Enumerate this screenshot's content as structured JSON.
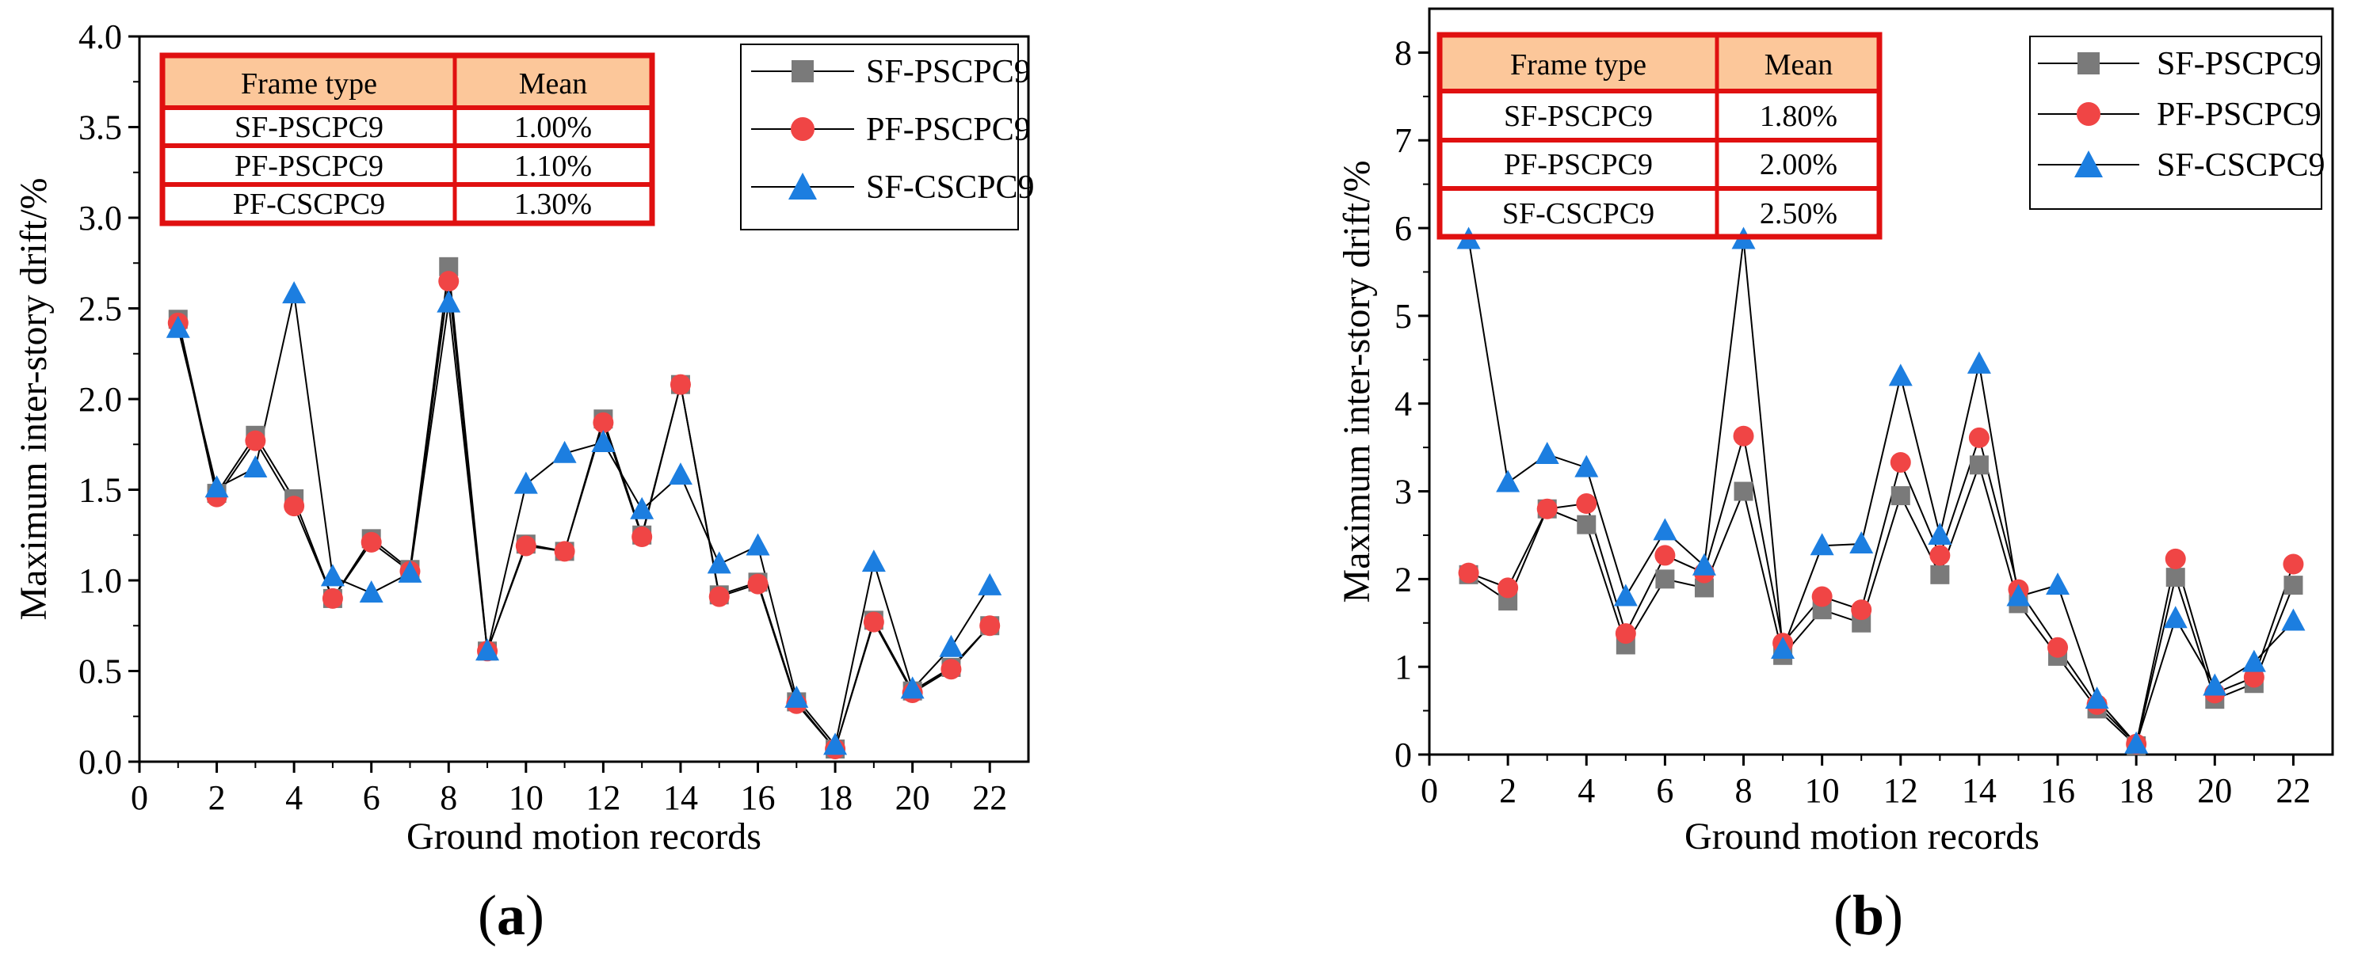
{
  "colors": {
    "sf_pscpc9": "#7a7a7a",
    "pf_pscpc9": "#f04545",
    "sf_cscpc9": "#1c7ee0",
    "table_header_bg": "#fcc79a",
    "table_border": "#e01010"
  },
  "chart_data": [
    {
      "id": "a",
      "type": "line",
      "panel_label": "(a)",
      "xlabel": "Ground motion records",
      "ylabel": "Maximum inter-story drift/%",
      "xlim": [
        0,
        23
      ],
      "ylim": [
        0,
        4.0
      ],
      "xticks": [
        "0",
        "2",
        "4",
        "6",
        "8",
        "10",
        "12",
        "14",
        "16",
        "18",
        "20",
        "22"
      ],
      "yticks": [
        "0.0",
        "0.5",
        "1.0",
        "1.5",
        "2.0",
        "2.5",
        "3.0",
        "3.5",
        "4.0"
      ],
      "x": [
        1,
        2,
        3,
        4,
        5,
        6,
        7,
        8,
        9,
        10,
        11,
        12,
        13,
        14,
        15,
        16,
        17,
        18,
        19,
        20,
        21,
        22
      ],
      "series": [
        {
          "name": "SF-PSCPC9",
          "marker": "square",
          "values": [
            2.44,
            1.48,
            1.8,
            1.45,
            0.9,
            1.23,
            1.06,
            2.73,
            0.61,
            1.2,
            1.16,
            1.89,
            1.25,
            2.08,
            0.92,
            0.99,
            0.33,
            0.07,
            0.78,
            0.39,
            0.52,
            0.75
          ]
        },
        {
          "name": "PF-PSCPC9",
          "marker": "circle",
          "values": [
            2.42,
            1.46,
            1.77,
            1.41,
            0.9,
            1.21,
            1.05,
            2.65,
            0.61,
            1.19,
            1.16,
            1.87,
            1.24,
            2.08,
            0.91,
            0.98,
            0.32,
            0.07,
            0.77,
            0.38,
            0.51,
            0.75
          ]
        },
        {
          "name": "SF-CSCPC9",
          "marker": "triangle",
          "values": [
            2.39,
            1.51,
            1.62,
            2.58,
            1.02,
            0.93,
            1.04,
            2.53,
            0.61,
            1.53,
            1.7,
            1.76,
            1.39,
            1.58,
            1.09,
            1.19,
            0.35,
            0.09,
            1.1,
            0.4,
            0.63,
            0.97
          ]
        }
      ],
      "legend": [
        "SF-PSCPC9",
        "PF-PSCPC9",
        "SF-CSCPC9"
      ],
      "table": {
        "headers": [
          "Frame type",
          "Mean"
        ],
        "rows": [
          [
            "SF-PSCPC9",
            "1.00%"
          ],
          [
            "PF-PSCPC9",
            "1.10%"
          ],
          [
            "PF-CSCPC9",
            "1.30%"
          ]
        ]
      }
    },
    {
      "id": "b",
      "type": "line",
      "panel_label": "(b)",
      "xlabel": "Ground motion records",
      "ylabel": "Maximum inter-story drift/%",
      "xlim": [
        0,
        23
      ],
      "ylim": [
        0,
        8.5
      ],
      "xticks": [
        "0",
        "2",
        "4",
        "6",
        "8",
        "10",
        "12",
        "14",
        "16",
        "18",
        "20",
        "22"
      ],
      "yticks": [
        "0",
        "1",
        "2",
        "3",
        "4",
        "5",
        "6",
        "7",
        "8"
      ],
      "x": [
        1,
        2,
        3,
        4,
        5,
        6,
        7,
        8,
        9,
        10,
        11,
        12,
        13,
        14,
        15,
        16,
        17,
        18,
        19,
        20,
        21,
        22
      ],
      "series": [
        {
          "name": "SF-PSCPC9",
          "marker": "square",
          "values": [
            2.05,
            1.75,
            2.8,
            2.62,
            1.25,
            2.0,
            1.9,
            3.0,
            1.13,
            1.65,
            1.5,
            2.95,
            2.05,
            3.3,
            1.72,
            1.12,
            0.52,
            0.1,
            2.02,
            0.63,
            0.81,
            1.93
          ]
        },
        {
          "name": "PF-PSCPC9",
          "marker": "circle",
          "values": [
            2.07,
            1.9,
            2.8,
            2.86,
            1.38,
            2.27,
            2.07,
            3.63,
            1.27,
            1.8,
            1.65,
            3.33,
            2.27,
            3.61,
            1.88,
            1.22,
            0.57,
            0.12,
            2.23,
            0.7,
            0.88,
            2.17
          ]
        },
        {
          "name": "SF-CSCPC9",
          "marker": "triangle",
          "values": [
            5.87,
            3.1,
            3.42,
            3.27,
            1.8,
            2.55,
            2.15,
            5.87,
            1.2,
            2.38,
            2.4,
            4.31,
            2.5,
            4.45,
            1.8,
            1.93,
            0.63,
            0.12,
            1.55,
            0.78,
            1.05,
            1.52
          ]
        }
      ],
      "legend": [
        "SF-PSCPC9",
        "PF-PSCPC9",
        "SF-CSCPC9"
      ],
      "table": {
        "headers": [
          "Frame type",
          "Mean"
        ],
        "rows": [
          [
            "SF-PSCPC9",
            "1.80%"
          ],
          [
            "PF-PSCPC9",
            "2.00%"
          ],
          [
            "SF-CSCPC9",
            "2.50%"
          ]
        ]
      }
    }
  ]
}
